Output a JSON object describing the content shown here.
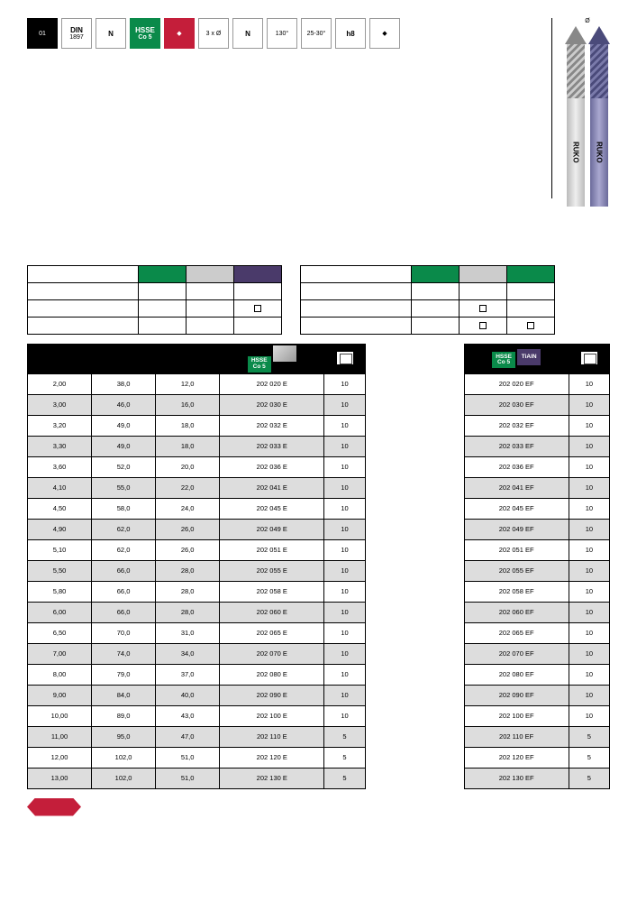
{
  "header": {
    "badges": [
      {
        "type": "dark",
        "line1": "",
        "line2": "01",
        "icon": "drill-icon"
      },
      {
        "type": "white",
        "line1": "DIN",
        "line2": "1897"
      },
      {
        "type": "white",
        "line1": "N",
        "line2": ""
      },
      {
        "type": "green",
        "line1": "HSSE",
        "line2": "Co 5"
      },
      {
        "type": "red",
        "line1": "",
        "line2": "",
        "icon": "spiral-icon"
      },
      {
        "type": "white",
        "line1": "",
        "line2": "3 x Ø",
        "icon": "length-icon"
      },
      {
        "type": "white",
        "line1": "N",
        "line2": "",
        "icon": "flute-icon"
      },
      {
        "type": "white",
        "line1": "",
        "line2": "130°",
        "icon": "angle-icon"
      },
      {
        "type": "white",
        "line1": "",
        "line2": "25-30°",
        "icon": "helix-icon"
      },
      {
        "type": "white",
        "line1": "h8",
        "line2": "",
        "icon": "tolerance-icon"
      },
      {
        "type": "white",
        "line1": "",
        "line2": "",
        "icon": "cylinder-icon"
      }
    ]
  },
  "diagram": {
    "dim_top": "Ø",
    "brand": "RUKO"
  },
  "smallTableHeaders": {
    "colors": [
      "green",
      "silver",
      "purple"
    ]
  },
  "mainTable": {
    "header_badges": {
      "col4a": "HSSE",
      "col4a2": "Co 5",
      "col7a": "HSSE",
      "col7a2": "Co 5",
      "col7b": "TiAlN"
    },
    "rows": [
      {
        "d": "2,00",
        "l1": "38,0",
        "l2": "12,0",
        "art1": "202 020 E",
        "pkg1": "10",
        "art2": "202 020 EF",
        "pkg2": "10"
      },
      {
        "d": "3,00",
        "l1": "46,0",
        "l2": "16,0",
        "art1": "202 030 E",
        "pkg1": "10",
        "art2": "202 030 EF",
        "pkg2": "10"
      },
      {
        "d": "3,20",
        "l1": "49,0",
        "l2": "18,0",
        "art1": "202 032 E",
        "pkg1": "10",
        "art2": "202 032 EF",
        "pkg2": "10"
      },
      {
        "d": "3,30",
        "l1": "49,0",
        "l2": "18,0",
        "art1": "202 033 E",
        "pkg1": "10",
        "art2": "202 033 EF",
        "pkg2": "10"
      },
      {
        "d": "3,60",
        "l1": "52,0",
        "l2": "20,0",
        "art1": "202 036 E",
        "pkg1": "10",
        "art2": "202 036 EF",
        "pkg2": "10"
      },
      {
        "d": "4,10",
        "l1": "55,0",
        "l2": "22,0",
        "art1": "202 041 E",
        "pkg1": "10",
        "art2": "202 041 EF",
        "pkg2": "10"
      },
      {
        "d": "4,50",
        "l1": "58,0",
        "l2": "24,0",
        "art1": "202 045 E",
        "pkg1": "10",
        "art2": "202 045 EF",
        "pkg2": "10"
      },
      {
        "d": "4,90",
        "l1": "62,0",
        "l2": "26,0",
        "art1": "202 049 E",
        "pkg1": "10",
        "art2": "202 049 EF",
        "pkg2": "10"
      },
      {
        "d": "5,10",
        "l1": "62,0",
        "l2": "26,0",
        "art1": "202 051 E",
        "pkg1": "10",
        "art2": "202 051 EF",
        "pkg2": "10"
      },
      {
        "d": "5,50",
        "l1": "66,0",
        "l2": "28,0",
        "art1": "202 055 E",
        "pkg1": "10",
        "art2": "202 055 EF",
        "pkg2": "10"
      },
      {
        "d": "5,80",
        "l1": "66,0",
        "l2": "28,0",
        "art1": "202 058 E",
        "pkg1": "10",
        "art2": "202 058 EF",
        "pkg2": "10"
      },
      {
        "d": "6,00",
        "l1": "66,0",
        "l2": "28,0",
        "art1": "202 060 E",
        "pkg1": "10",
        "art2": "202 060 EF",
        "pkg2": "10"
      },
      {
        "d": "6,50",
        "l1": "70,0",
        "l2": "31,0",
        "art1": "202 065 E",
        "pkg1": "10",
        "art2": "202 065 EF",
        "pkg2": "10"
      },
      {
        "d": "7,00",
        "l1": "74,0",
        "l2": "34,0",
        "art1": "202 070 E",
        "pkg1": "10",
        "art2": "202 070 EF",
        "pkg2": "10"
      },
      {
        "d": "8,00",
        "l1": "79,0",
        "l2": "37,0",
        "art1": "202 080 E",
        "pkg1": "10",
        "art2": "202 080 EF",
        "pkg2": "10"
      },
      {
        "d": "9,00",
        "l1": "84,0",
        "l2": "40,0",
        "art1": "202 090 E",
        "pkg1": "10",
        "art2": "202 090 EF",
        "pkg2": "10"
      },
      {
        "d": "10,00",
        "l1": "89,0",
        "l2": "43,0",
        "art1": "202 100 E",
        "pkg1": "10",
        "art2": "202 100 EF",
        "pkg2": "10"
      },
      {
        "d": "11,00",
        "l1": "95,0",
        "l2": "47,0",
        "art1": "202 110 E",
        "pkg1": "5",
        "art2": "202 110 EF",
        "pkg2": "5"
      },
      {
        "d": "12,00",
        "l1": "102,0",
        "l2": "51,0",
        "art1": "202 120 E",
        "pkg1": "5",
        "art2": "202 120 EF",
        "pkg2": "5"
      },
      {
        "d": "13,00",
        "l1": "102,0",
        "l2": "51,0",
        "art1": "202 130 E",
        "pkg1": "5",
        "art2": "202 130 EF",
        "pkg2": "5"
      }
    ]
  }
}
